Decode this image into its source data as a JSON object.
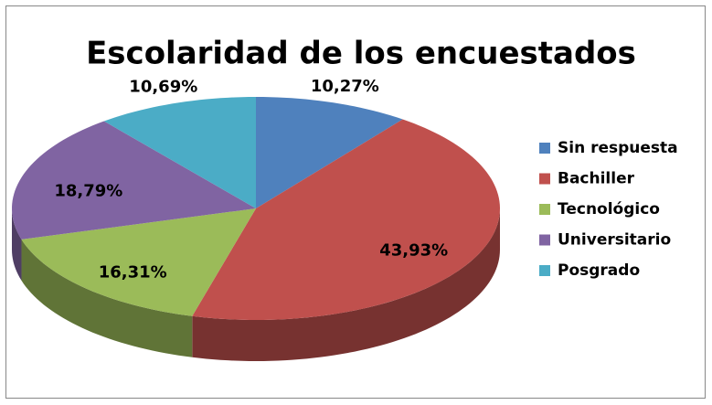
{
  "chart_data": {
    "type": "pie",
    "title": "Escolaridad de los encuestados",
    "categories": [
      "Sin respuesta",
      "Bachiller",
      "Tecnológico",
      "Universitario",
      "Posgrado"
    ],
    "values": [
      10.27,
      43.93,
      16.31,
      18.79,
      10.69
    ],
    "value_labels": [
      "10,27%",
      "43,93%",
      "16,31%",
      "18,79%",
      "10,69%"
    ],
    "colors": [
      "#4f81bd",
      "#c0504d",
      "#9bbb59",
      "#8064a2",
      "#4bacc6"
    ],
    "legend": "right"
  }
}
